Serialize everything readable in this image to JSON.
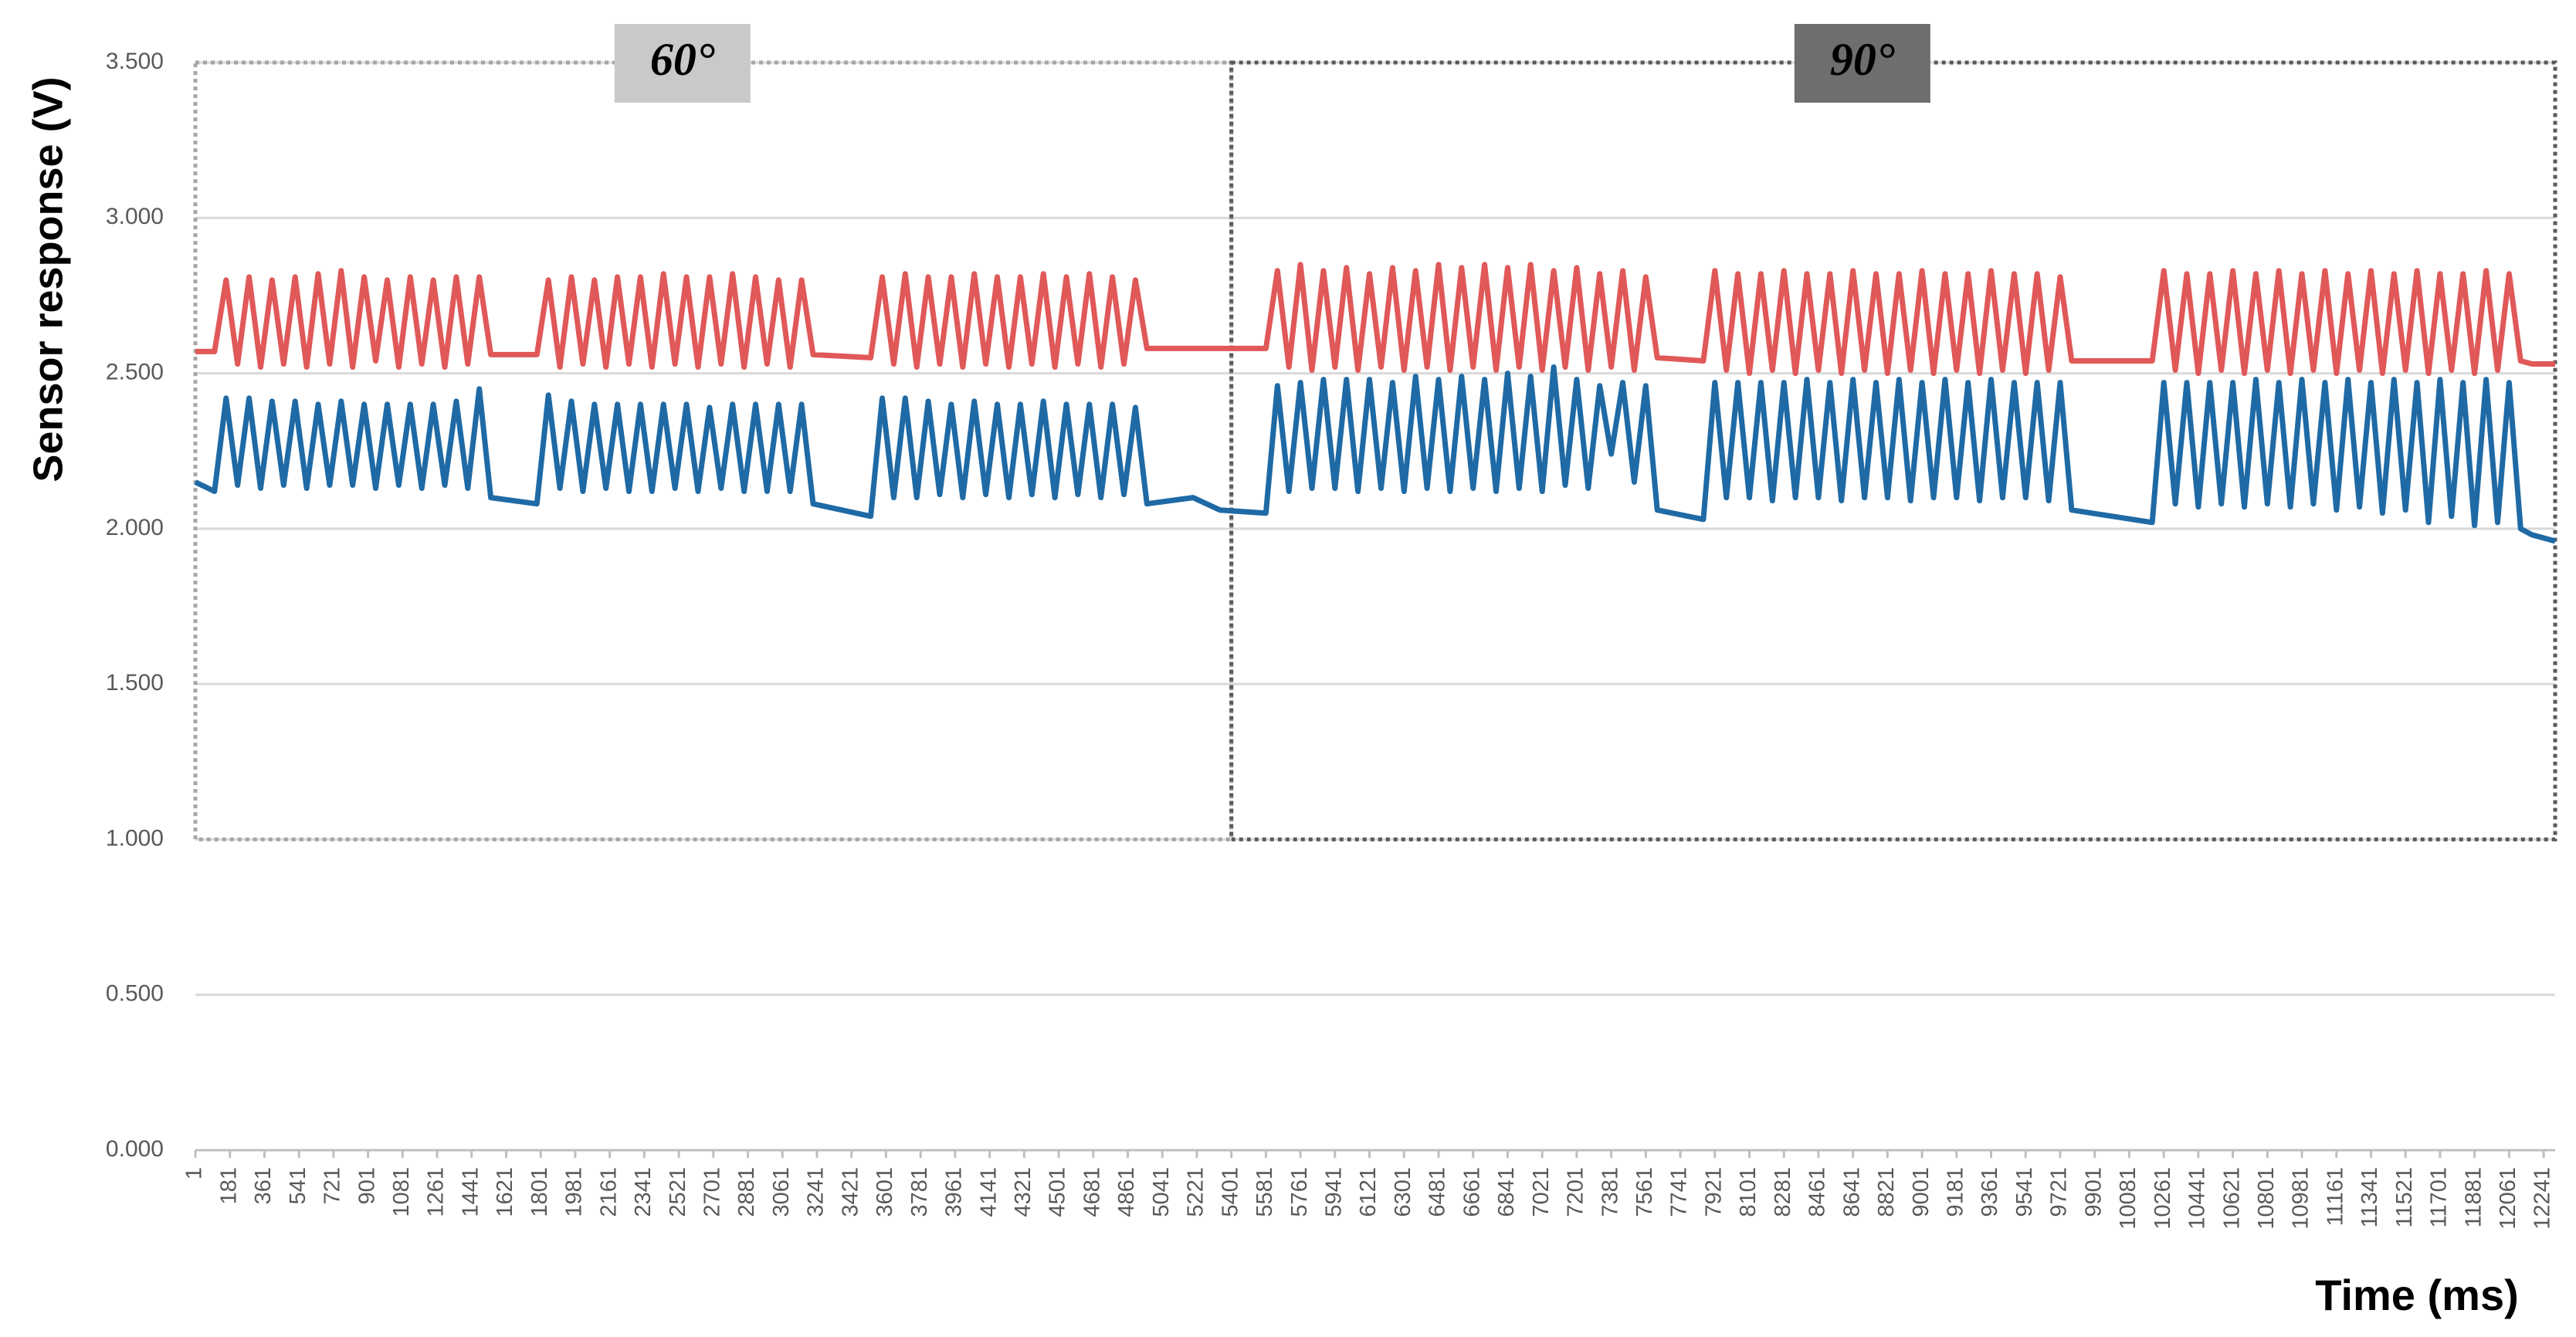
{
  "chart_data": {
    "type": "line",
    "x_label": "Time (ms)",
    "y_label": "Sensor response (V)",
    "xlim": [
      1,
      12301
    ],
    "ylim": [
      0,
      3.5
    ],
    "grid": true,
    "yticks": [
      {
        "value": 0,
        "label": "0.000"
      },
      {
        "value": 0.5,
        "label": "0.500"
      },
      {
        "value": 1,
        "label": "1.000"
      },
      {
        "value": 1.5,
        "label": "1.500"
      },
      {
        "value": 2,
        "label": "2.000"
      },
      {
        "value": 2.5,
        "label": "2.500"
      },
      {
        "value": 3,
        "label": "3.000"
      },
      {
        "value": 3.5,
        "label": "3.500"
      }
    ],
    "xticks": [
      1,
      181,
      361,
      541,
      721,
      901,
      1081,
      1261,
      1441,
      1621,
      1801,
      1981,
      2161,
      2341,
      2521,
      2701,
      2881,
      3061,
      3241,
      3421,
      3601,
      3781,
      3961,
      4141,
      4321,
      4501,
      4681,
      4861,
      5041,
      5221,
      5401,
      5581,
      5761,
      5941,
      6121,
      6301,
      6481,
      6661,
      6841,
      7021,
      7201,
      7381,
      7561,
      7741,
      7921,
      8101,
      8281,
      8461,
      8641,
      8821,
      9001,
      9181,
      9361,
      9541,
      9721,
      9901,
      10081,
      10261,
      10441,
      10621,
      10801,
      10981,
      11161,
      11341,
      11521,
      11701,
      11881,
      12061,
      12241
    ],
    "regions": [
      {
        "label": "60°",
        "x": [
          1,
          5401
        ],
        "y": [
          1,
          3.5
        ],
        "color": "#c9c9c9",
        "border": "#a6a6a6"
      },
      {
        "label": "90°",
        "x": [
          5401,
          12301
        ],
        "y": [
          1,
          3.5
        ],
        "color": "#6e6e6e",
        "border": "#5a5a5a"
      }
    ],
    "x": [
      1,
      101,
      161,
      221,
      281,
      341,
      401,
      461,
      521,
      581,
      641,
      701,
      761,
      821,
      881,
      941,
      1001,
      1061,
      1121,
      1181,
      1241,
      1301,
      1361,
      1421,
      1481,
      1541,
      1781,
      1841,
      1901,
      1961,
      2021,
      2081,
      2141,
      2201,
      2261,
      2321,
      2381,
      2441,
      2501,
      2561,
      2621,
      2681,
      2741,
      2801,
      2861,
      2921,
      2981,
      3041,
      3101,
      3161,
      3221,
      3521,
      3581,
      3641,
      3701,
      3761,
      3821,
      3881,
      3941,
      4001,
      4061,
      4121,
      4181,
      4241,
      4301,
      4361,
      4421,
      4481,
      4541,
      4601,
      4661,
      4721,
      4781,
      4841,
      4901,
      4961,
      5201,
      5341,
      5581,
      5641,
      5701,
      5761,
      5821,
      5881,
      5941,
      6001,
      6061,
      6121,
      6181,
      6241,
      6301,
      6361,
      6421,
      6481,
      6541,
      6601,
      6661,
      6721,
      6781,
      6841,
      6901,
      6961,
      7021,
      7081,
      7141,
      7201,
      7261,
      7321,
      7381,
      7441,
      7501,
      7561,
      7621,
      7861,
      7921,
      7981,
      8041,
      8101,
      8161,
      8221,
      8281,
      8341,
      8401,
      8461,
      8521,
      8581,
      8641,
      8701,
      8761,
      8821,
      8881,
      8941,
      9001,
      9061,
      9121,
      9181,
      9241,
      9301,
      9361,
      9421,
      9481,
      9541,
      9601,
      9661,
      9721,
      9781,
      10201,
      10261,
      10321,
      10381,
      10441,
      10501,
      10561,
      10621,
      10681,
      10741,
      10801,
      10861,
      10921,
      10981,
      11041,
      11101,
      11161,
      11221,
      11281,
      11341,
      11401,
      11461,
      11521,
      11581,
      11641,
      11701,
      11761,
      11821,
      11881,
      11941,
      12001,
      12061,
      12121,
      12181,
      12301
    ],
    "series": [
      {
        "color": "#e05858",
        "values": [
          2.57,
          2.57,
          2.8,
          2.53,
          2.81,
          2.52,
          2.8,
          2.53,
          2.81,
          2.52,
          2.82,
          2.53,
          2.83,
          2.52,
          2.81,
          2.54,
          2.8,
          2.52,
          2.81,
          2.53,
          2.8,
          2.52,
          2.81,
          2.53,
          2.81,
          2.56,
          2.56,
          2.8,
          2.52,
          2.81,
          2.53,
          2.8,
          2.52,
          2.81,
          2.53,
          2.81,
          2.52,
          2.82,
          2.53,
          2.81,
          2.52,
          2.81,
          2.53,
          2.82,
          2.52,
          2.81,
          2.53,
          2.8,
          2.52,
          2.8,
          2.56,
          2.55,
          2.81,
          2.53,
          2.82,
          2.52,
          2.81,
          2.53,
          2.81,
          2.52,
          2.82,
          2.53,
          2.81,
          2.52,
          2.81,
          2.53,
          2.82,
          2.52,
          2.81,
          2.53,
          2.82,
          2.52,
          2.81,
          2.53,
          2.8,
          2.58,
          2.58,
          2.58,
          2.58,
          2.83,
          2.52,
          2.85,
          2.51,
          2.83,
          2.52,
          2.84,
          2.51,
          2.82,
          2.52,
          2.84,
          2.51,
          2.83,
          2.52,
          2.85,
          2.51,
          2.84,
          2.52,
          2.85,
          2.51,
          2.84,
          2.52,
          2.85,
          2.51,
          2.83,
          2.52,
          2.84,
          2.51,
          2.82,
          2.52,
          2.83,
          2.51,
          2.81,
          2.55,
          2.54,
          2.83,
          2.51,
          2.82,
          2.5,
          2.82,
          2.51,
          2.83,
          2.5,
          2.82,
          2.51,
          2.82,
          2.5,
          2.83,
          2.51,
          2.82,
          2.5,
          2.82,
          2.51,
          2.83,
          2.5,
          2.82,
          2.51,
          2.82,
          2.5,
          2.83,
          2.51,
          2.82,
          2.5,
          2.82,
          2.51,
          2.81,
          2.54,
          2.54,
          2.83,
          2.51,
          2.82,
          2.5,
          2.82,
          2.51,
          2.83,
          2.5,
          2.82,
          2.51,
          2.83,
          2.5,
          2.82,
          2.51,
          2.83,
          2.5,
          2.82,
          2.51,
          2.83,
          2.5,
          2.82,
          2.51,
          2.83,
          2.5,
          2.82,
          2.51,
          2.82,
          2.5,
          2.83,
          2.51,
          2.82,
          2.54,
          2.53,
          2.53
        ]
      },
      {
        "color": "#1f6aa5",
        "values": [
          2.15,
          2.12,
          2.42,
          2.14,
          2.42,
          2.13,
          2.41,
          2.14,
          2.41,
          2.13,
          2.4,
          2.14,
          2.41,
          2.14,
          2.4,
          2.13,
          2.4,
          2.14,
          2.4,
          2.13,
          2.4,
          2.14,
          2.41,
          2.13,
          2.45,
          2.1,
          2.08,
          2.43,
          2.13,
          2.41,
          2.12,
          2.4,
          2.13,
          2.4,
          2.12,
          2.4,
          2.12,
          2.4,
          2.13,
          2.4,
          2.12,
          2.39,
          2.13,
          2.4,
          2.12,
          2.4,
          2.12,
          2.4,
          2.12,
          2.4,
          2.08,
          2.04,
          2.42,
          2.1,
          2.42,
          2.1,
          2.41,
          2.11,
          2.4,
          2.1,
          2.41,
          2.11,
          2.4,
          2.1,
          2.4,
          2.11,
          2.41,
          2.1,
          2.4,
          2.11,
          2.4,
          2.1,
          2.4,
          2.11,
          2.39,
          2.08,
          2.1,
          2.06,
          2.05,
          2.46,
          2.12,
          2.47,
          2.13,
          2.48,
          2.13,
          2.48,
          2.12,
          2.48,
          2.13,
          2.47,
          2.12,
          2.49,
          2.13,
          2.48,
          2.12,
          2.49,
          2.13,
          2.48,
          2.12,
          2.5,
          2.13,
          2.49,
          2.12,
          2.52,
          2.14,
          2.48,
          2.13,
          2.46,
          2.24,
          2.47,
          2.15,
          2.46,
          2.06,
          2.03,
          2.47,
          2.1,
          2.47,
          2.1,
          2.47,
          2.09,
          2.47,
          2.1,
          2.48,
          2.1,
          2.47,
          2.09,
          2.48,
          2.1,
          2.47,
          2.1,
          2.48,
          2.09,
          2.47,
          2.1,
          2.48,
          2.1,
          2.47,
          2.09,
          2.48,
          2.1,
          2.47,
          2.1,
          2.47,
          2.09,
          2.47,
          2.06,
          2.02,
          2.47,
          2.08,
          2.47,
          2.07,
          2.47,
          2.08,
          2.47,
          2.07,
          2.48,
          2.08,
          2.47,
          2.07,
          2.48,
          2.08,
          2.47,
          2.06,
          2.48,
          2.07,
          2.47,
          2.05,
          2.48,
          2.06,
          2.47,
          2.02,
          2.48,
          2.04,
          2.47,
          2.01,
          2.48,
          2.02,
          2.47,
          2.0,
          1.98,
          1.96
        ]
      }
    ]
  }
}
